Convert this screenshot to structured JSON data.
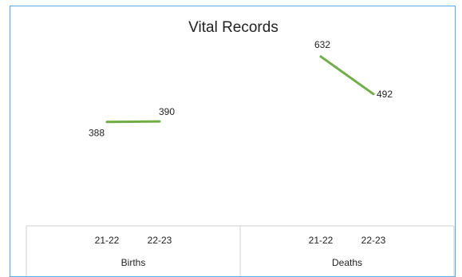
{
  "chart_data": {
    "type": "line",
    "title": "Vital Records",
    "groups": [
      {
        "name": "Births",
        "categories": [
          "21-22",
          "22-23"
        ],
        "values": [
          388,
          390
        ]
      },
      {
        "name": "Deaths",
        "categories": [
          "21-22",
          "22-23"
        ],
        "values": [
          632,
          492
        ]
      }
    ],
    "ylim": [
      0,
      700
    ],
    "line_color": "#70ad47",
    "grid": false,
    "legend": "none"
  }
}
